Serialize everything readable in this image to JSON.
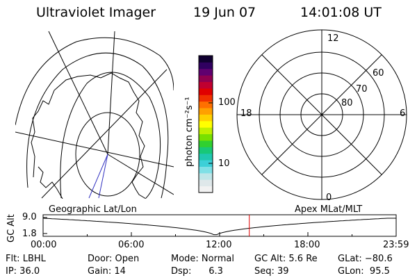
{
  "header": {
    "instrument": "Ultraviolet Imager",
    "date": "19 Jun 07",
    "time": "14:01:08 UT"
  },
  "colorbar": {
    "unit_label": "photon cm⁻²s⁻¹",
    "tick_labels": [
      "100",
      "10"
    ],
    "scale": "log",
    "colors": [
      "#f2f2f2",
      "#dfe8ea",
      "#bfe6e8",
      "#7fe0e6",
      "#3cd0d8",
      "#20c8b0",
      "#18c878",
      "#30d030",
      "#78e000",
      "#c0f000",
      "#ffff00",
      "#ffd000",
      "#ffa000",
      "#ff7000",
      "#f03000",
      "#e00000",
      "#c00030",
      "#900050",
      "#600070",
      "#300060",
      "#100030"
    ]
  },
  "left_map": {
    "caption": "Geographic Lat/Lon"
  },
  "right_map": {
    "caption": "Apex MLat/MLT",
    "mlt_labels": {
      "top": "12",
      "left": "18",
      "right": "6",
      "bottom": "0"
    },
    "lat_labels": [
      "60",
      "70",
      "80"
    ]
  },
  "gc_alt_plot": {
    "ylabel": "GC Alt",
    "y_ticks": [
      "9.0",
      "1.8"
    ],
    "x_ticks": [
      "00:00",
      "06:00",
      "12:00",
      "18:00",
      "23:59"
    ],
    "marker_time": "14:01",
    "marker_color": "#e00000"
  },
  "info": {
    "flt": "Flt: LBHL",
    "ip": "IP: 36.0",
    "door": "Door: Open",
    "gain": "Gain: 14",
    "mode": "Mode: Normal",
    "dsp": "Dsp:      6.3",
    "gcalt": "GC Alt: 5.6 Re",
    "seq": "Seq: 39",
    "glat": "GLat: −80.6",
    "glon": "GLon:  95.5"
  }
}
